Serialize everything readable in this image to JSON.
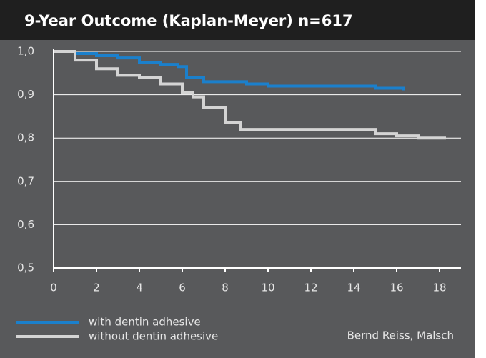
{
  "chart_data": {
    "type": "line",
    "title": "9-Year Outcome (Kaplan-Meyer) n=617",
    "annotation": "Bernd Reiss, Malsch",
    "xlim": [
      0,
      19
    ],
    "xticks": [
      0,
      2,
      4,
      6,
      8,
      10,
      12,
      14,
      16,
      18
    ],
    "ylim": [
      0.5,
      1.0
    ],
    "yticks": [
      {
        "value": 0.5,
        "label": "0,5"
      },
      {
        "value": 0.6,
        "label": "0,6"
      },
      {
        "value": 0.7,
        "label": "0,7"
      },
      {
        "value": 0.8,
        "label": "0,8"
      },
      {
        "value": 0.9,
        "label": "0,9"
      },
      {
        "value": 1.0,
        "label": "1,0"
      }
    ],
    "grid": true,
    "step": true,
    "series": [
      {
        "name": "with dentin adhesive",
        "color": "#1b80cc",
        "x": [
          0,
          1,
          2,
          3,
          4,
          5,
          5.8,
          6.2,
          7,
          9,
          10,
          14,
          15,
          16.3
        ],
        "values": [
          1.0,
          0.995,
          0.99,
          0.985,
          0.975,
          0.97,
          0.965,
          0.94,
          0.93,
          0.925,
          0.92,
          0.92,
          0.915,
          0.91
        ]
      },
      {
        "name": "without dentin adhesive",
        "color": "#d4d4d4",
        "x": [
          0,
          1,
          2,
          3,
          4,
          5,
          6,
          6.5,
          7,
          8,
          8.7,
          14,
          15,
          16,
          17,
          18.3
        ],
        "values": [
          1.0,
          0.98,
          0.96,
          0.945,
          0.94,
          0.925,
          0.905,
          0.895,
          0.87,
          0.835,
          0.82,
          0.82,
          0.81,
          0.805,
          0.8,
          0.8
        ]
      }
    ]
  }
}
